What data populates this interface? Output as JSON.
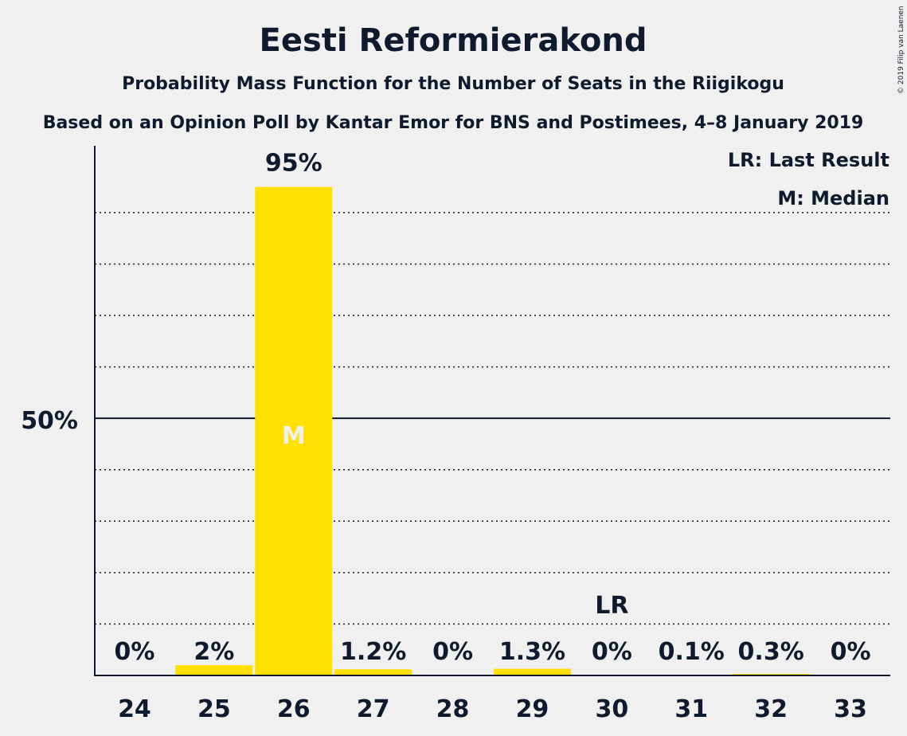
{
  "chart_data": {
    "type": "bar",
    "title": "Eesti Reformierakond",
    "subtitle": "Probability Mass Function for the Number of Seats in the Riigikogu",
    "subtitle2": "Based on an Opinion Poll by Kantar Emor for BNS and Postimees, 4–8 January 2019",
    "copyright": "© 2019 Filip van Laenen",
    "categories": [
      "24",
      "25",
      "26",
      "27",
      "28",
      "29",
      "30",
      "31",
      "32",
      "33"
    ],
    "values": [
      0,
      2,
      95,
      1.2,
      0,
      1.3,
      0,
      0.1,
      0.3,
      0
    ],
    "value_labels": [
      "0%",
      "2%",
      "95%",
      "1.2%",
      "0%",
      "1.3%",
      "0%",
      "0.1%",
      "0.3%",
      "0%"
    ],
    "ylim": [
      0,
      103
    ],
    "ytick_label": "50%",
    "ytick_value": 50,
    "median_category": "26",
    "median_label": "M",
    "last_result_category": "30",
    "last_result_label": "LR",
    "legend": [
      "LR: Last Result",
      "M: Median"
    ],
    "legend_position": "top-right",
    "grid": true,
    "colors": {
      "bar": "#ffe000",
      "text": "#0f1b2d",
      "background": "#f0f0f0"
    }
  }
}
